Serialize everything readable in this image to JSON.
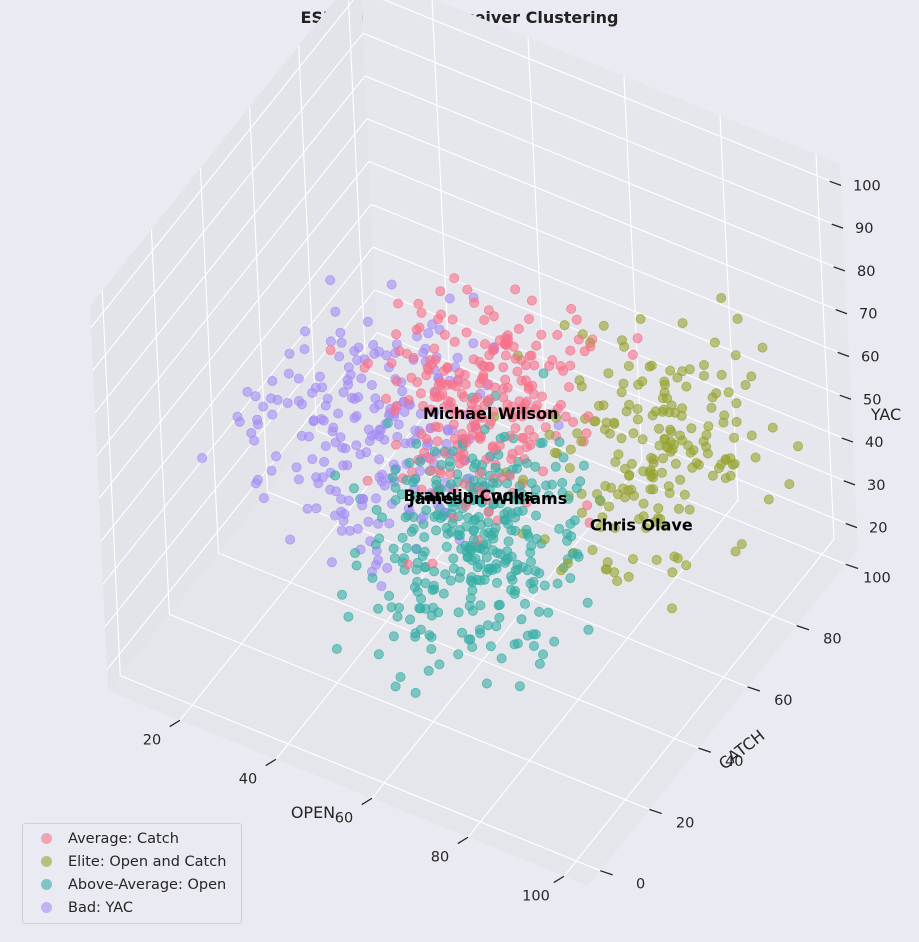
{
  "chart_data": {
    "type": "scatter",
    "projection": "3d",
    "title": "ESPN Analytics Receiver Clustering",
    "xlabel": "OPEN",
    "ylabel": "CATCH",
    "zlabel": "YAC",
    "xlim": [
      5,
      105
    ],
    "ylim": [
      -5,
      105
    ],
    "zlim": [
      15,
      105
    ],
    "x_ticks": [
      20,
      40,
      60,
      80,
      100
    ],
    "y_ticks": [
      0,
      20,
      40,
      60,
      80,
      100
    ],
    "z_ticks": [
      20,
      30,
      40,
      50,
      60,
      70,
      80,
      90,
      100
    ],
    "grid": true,
    "legend_position": "lower-left",
    "series": [
      {
        "name": "Average: Catch",
        "color": "#f77189",
        "n_points": 260,
        "center": [
          55,
          55,
          62
        ],
        "spread": [
          9,
          11,
          10
        ],
        "seed": 11
      },
      {
        "name": "Elite: Open and Catch",
        "color": "#97a431",
        "n_points": 200,
        "center": [
          80,
          70,
          52
        ],
        "spread": [
          10,
          13,
          11
        ],
        "seed": 23
      },
      {
        "name": "Above-Average: Open",
        "color": "#36ada4",
        "n_points": 340,
        "center": [
          62,
          38,
          45
        ],
        "spread": [
          9,
          12,
          9
        ],
        "seed": 37
      },
      {
        "name": "Bad: YAC",
        "color": "#a48cf4",
        "n_points": 230,
        "center": [
          30,
          55,
          45
        ],
        "spread": [
          11,
          15,
          8
        ],
        "seed": 51
      }
    ],
    "annotations": [
      {
        "text": "Michael Wilson",
        "x": 52,
        "y": 62,
        "z": 52
      },
      {
        "text": "Jameson Williams",
        "x": 60,
        "y": 45,
        "z": 48
      },
      {
        "text": "Brandin Cooks",
        "x": 52,
        "y": 52,
        "z": 40
      },
      {
        "text": "Chris Olave",
        "x": 84,
        "y": 60,
        "z": 42
      }
    ]
  }
}
